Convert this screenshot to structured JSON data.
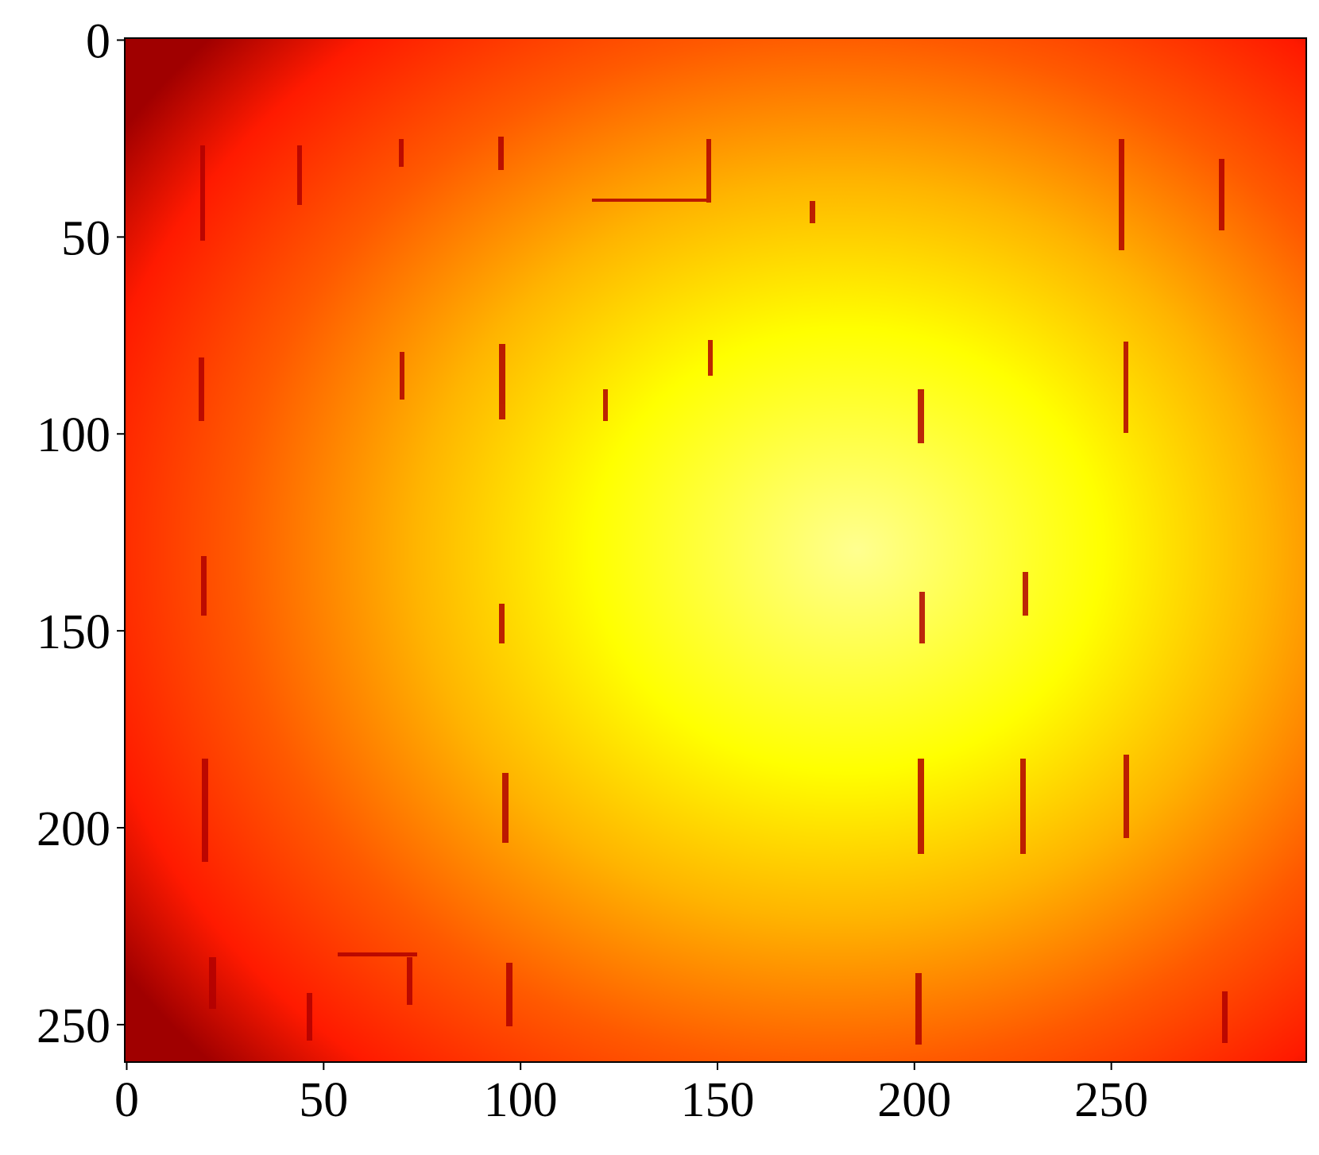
{
  "chart_data": {
    "type": "image",
    "colormap": "hot",
    "xlim": [
      -0.5,
      299.5
    ],
    "ylim": [
      259.5,
      -0.5
    ],
    "xticks": [
      0,
      50,
      100,
      150,
      200,
      250
    ],
    "yticks": [
      0,
      50,
      100,
      150,
      200,
      250
    ]
  }
}
